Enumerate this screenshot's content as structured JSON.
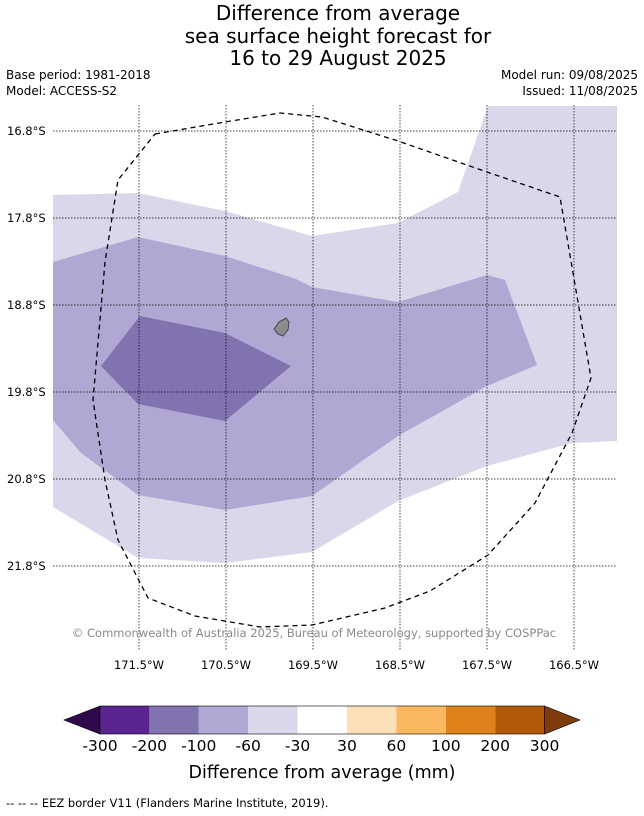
{
  "title": {
    "line1": "Difference from average",
    "line2": "sea surface height forecast for",
    "line3": "16 to 29 August 2025"
  },
  "meta": {
    "base_period": "Base period: 1981-2018",
    "model": "Model: ACCESS-S2",
    "model_run": "Model run: 09/08/2025",
    "issued": "Issued: 11/08/2025"
  },
  "map": {
    "lat_labels": [
      "16.8°S",
      "17.8°S",
      "18.8°S",
      "19.8°S",
      "20.8°S",
      "21.8°S"
    ],
    "lon_labels": [
      "171.5°W",
      "170.5°W",
      "169.5°W",
      "168.5°W",
      "167.5°W",
      "166.5°W"
    ],
    "copyright": "© Commonwealth of Australia 2025, Bureau of Meteorology, supported by COSPPac",
    "colors": {
      "below_-300": "#2e0a4a",
      "-300_-200": "#5a2590",
      "-200_-100": "#8073b0",
      "-100_-60": "#b0a8d2",
      "-60_-30": "#d8d8ea",
      "-30_30": "#ffffff",
      "30_60": "#fde0b8",
      "60_100": "#fbb860",
      "100_200": "#e0821a",
      "200_300": "#b25a0a",
      "above_300": "#7e3c0c",
      "land": "#8c8c8c",
      "eez_border": "#000000"
    }
  },
  "colorbar": {
    "ticks": [
      "-300",
      "-200",
      "-100",
      "-60",
      "-30",
      "30",
      "60",
      "100",
      "200",
      "300"
    ],
    "title": "Difference from average (mm)"
  },
  "footer": {
    "eez_note": "--  --  -- EEZ border V11 (Flanders Marine Institute, 2019)."
  }
}
